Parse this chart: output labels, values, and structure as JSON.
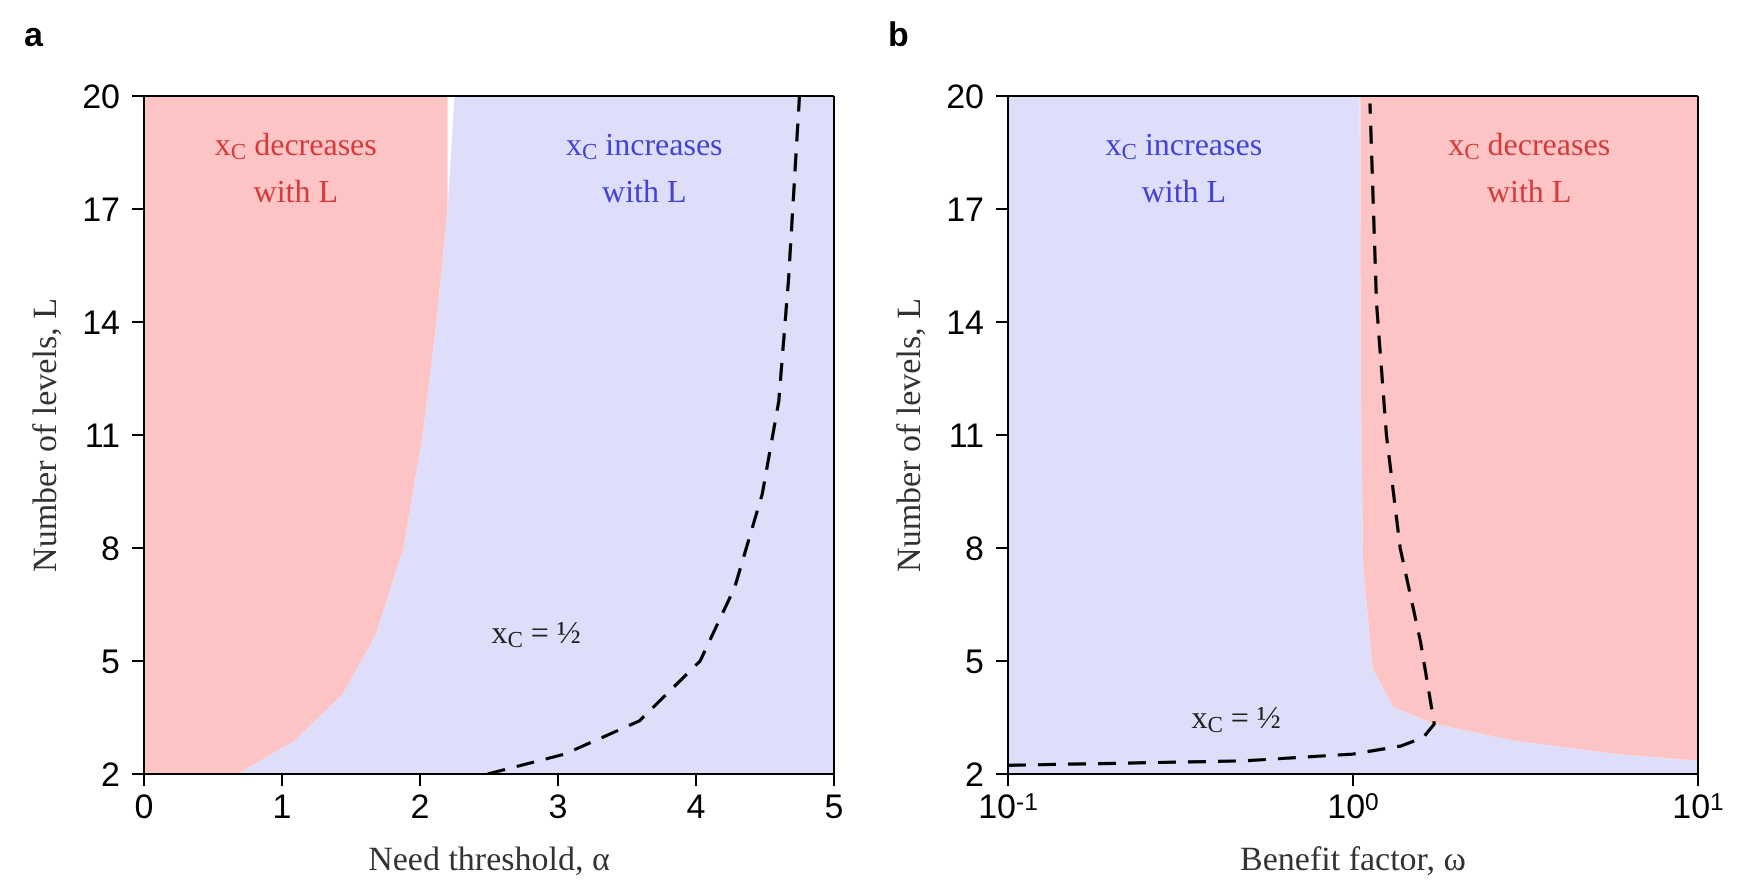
{
  "chart_data": [
    {
      "type": "area",
      "title": "a",
      "xlabel": "Need threshold, α",
      "ylabel": "Number of levels, L",
      "stacked": true,
      "x": [
        0,
        0.68,
        1.09,
        1.44,
        1.68,
        1.88,
        2.02,
        2.12,
        2.2,
        2.25,
        5
      ],
      "series": [
        {
          "name": "x$_{C}$ increases with L",
          "color": "#dedefa",
          "values": [
            2,
            2,
            2.88,
            4.12,
            5.7,
            8.0,
            11.0,
            14.0,
            17.0,
            20,
            20
          ]
        },
        {
          "name": "x$_{C}$ decreases with L",
          "color": "#fcc4c4",
          "values": [
            18,
            18,
            17.12,
            15.88,
            14.3,
            12,
            9,
            6,
            3,
            null,
            null
          ]
        },
        {
          "type": "line",
          "color": "#000000",
          "line_style": "dashed",
          "x": [
            2.49,
            3.05,
            3.59,
            4.03,
            4.28,
            4.48,
            4.6,
            4.67,
            4.75
          ],
          "values": [
            2,
            2.53,
            3.41,
            5.0,
            6.95,
            9.43,
            11.9,
            15.1,
            20
          ]
        }
      ],
      "xlim": [
        0,
        5
      ],
      "xticks": [
        0,
        1,
        2,
        3,
        4,
        5
      ],
      "ylim": [
        2,
        20
      ],
      "yticks": [
        2,
        5,
        8,
        11,
        14,
        17,
        20
      ],
      "annotations": [
        "x$_{C}$ = ½"
      ]
    },
    {
      "type": "area",
      "title": "b",
      "xlabel": "Benefit factor, ω",
      "ylabel": "Number of levels, L",
      "stacked": true,
      "log": "x",
      "x": [
        0.1,
        1.046,
        1.05,
        1.055,
        1.07,
        1.14,
        1.31,
        1.72,
        2.94,
        5.78,
        10
      ],
      "series": [
        {
          "name": "x$_{C}$ increases with L",
          "color": "#dedefa",
          "values": [
            20,
            20,
            15.5,
            11.9,
            7.5,
            4.8,
            3.77,
            3.33,
            2.88,
            2.53,
            2.35
          ]
        },
        {
          "name": "x$_{C}$ decreases with L",
          "color": "#fcc4c4",
          "values": [
            null,
            null,
            4.5,
            8.1,
            12.5,
            15.2,
            16.23,
            16.67,
            17.12,
            17.47,
            17.65
          ]
        },
        {
          "type": "line",
          "color": "#000000",
          "line_style": "dashed",
          "x": [
            0.1,
            0.487,
            1,
            1.37,
            1.6,
            1.72,
            1.57,
            1.37,
            1.25,
            1.17,
            1.12
          ],
          "values": [
            2.23,
            2.35,
            2.53,
            2.74,
            2.97,
            3.33,
            5.5,
            8.0,
            11.0,
            14.5,
            19.8
          ]
        }
      ],
      "xlim": [
        0.1,
        10
      ],
      "xticks": [
        {
          "value": 0.1,
          "label": "10$^{-1}$"
        },
        {
          "value": 1,
          "label": "10$^{0}$"
        },
        {
          "value": 10,
          "label": "10$^{1}$"
        }
      ],
      "ylim": [
        2,
        20
      ],
      "yticks": [
        2,
        5,
        8,
        11,
        14,
        17,
        20
      ],
      "annotations": [
        "x$_{C}$ = ½"
      ]
    }
  ]
}
